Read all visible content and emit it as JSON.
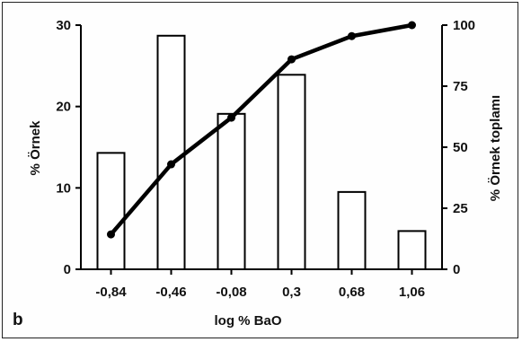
{
  "chart_data": {
    "type": "bar",
    "panel_label": "b",
    "xlabel": "log % BaO",
    "ylabel_left": "% Örnek",
    "ylabel_right": "% Örnek toplamı",
    "categories": [
      "-0,84",
      "-0,46",
      "-0,08",
      "0,3",
      "0,68",
      "1,06"
    ],
    "series": [
      {
        "type": "bar",
        "axis": "left",
        "values": [
          14.3,
          28.7,
          19.1,
          23.9,
          9.5,
          4.7
        ]
      },
      {
        "type": "line",
        "axis": "right",
        "values": [
          14.3,
          43,
          62.1,
          86,
          95.5,
          100
        ]
      }
    ],
    "ylim_left": [
      0,
      30
    ],
    "yticks_left": [
      "0",
      "10",
      "20",
      "30"
    ],
    "ylim_right": [
      0,
      100
    ],
    "yticks_right": [
      "0",
      "25",
      "50",
      "75",
      "100"
    ],
    "grid": false,
    "legend": "none",
    "colors": {
      "bar_fill": "#ffffff",
      "stroke": "#000000",
      "line": "#000000"
    }
  }
}
